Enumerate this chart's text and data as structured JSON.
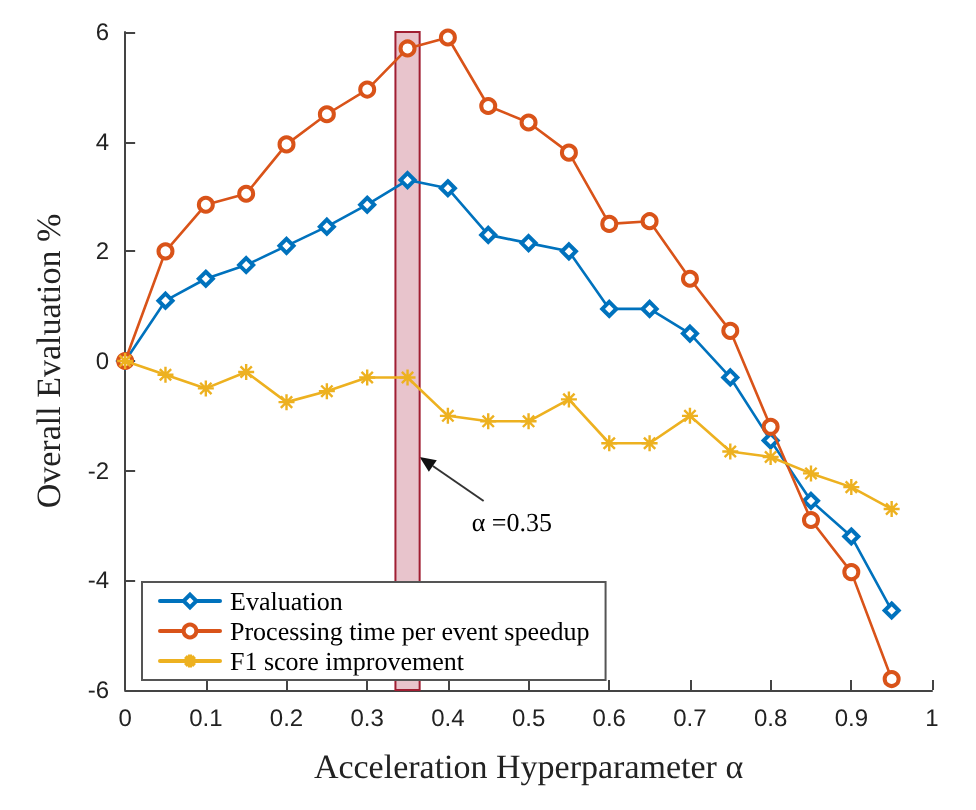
{
  "chart_data": {
    "type": "line",
    "xlabel": "Acceleration Hyperparameter α",
    "ylabel": "Overall Evaluation %",
    "x": [
      0,
      0.05,
      0.1,
      0.15,
      0.2,
      0.25,
      0.3,
      0.35,
      0.4,
      0.45,
      0.5,
      0.55,
      0.6,
      0.65,
      0.7,
      0.75,
      0.8,
      0.85,
      0.9,
      0.95
    ],
    "series": [
      {
        "name": "Evaluation",
        "color": "#0072bd",
        "marker": "diamond",
        "values": [
          0,
          1.1,
          1.5,
          1.75,
          2.1,
          2.45,
          2.85,
          3.3,
          3.15,
          2.3,
          2.15,
          2.0,
          0.95,
          0.95,
          0.5,
          -0.3,
          -1.45,
          -2.55,
          -3.2,
          -4.55
        ]
      },
      {
        "name": "Processing time per event speedup",
        "color": "#d95319",
        "marker": "circle",
        "values": [
          0,
          2.0,
          2.85,
          3.05,
          3.95,
          4.5,
          4.95,
          5.7,
          5.9,
          4.65,
          4.35,
          3.8,
          2.5,
          2.55,
          1.5,
          0.55,
          -1.2,
          -2.9,
          -3.85,
          -5.8
        ]
      },
      {
        "name": "F1 score improvement",
        "color": "#edb120",
        "marker": "cross",
        "values": [
          0,
          -0.25,
          -0.5,
          -0.2,
          -0.75,
          -0.55,
          -0.3,
          -0.3,
          -1.0,
          -1.1,
          -1.1,
          -0.7,
          -1.5,
          -1.5,
          -1.0,
          -1.65,
          -1.75,
          -2.05,
          -2.3,
          -2.7
        ]
      }
    ],
    "xlim": [
      0,
      1
    ],
    "xticks": [
      0,
      0.1,
      0.2,
      0.3,
      0.4,
      0.5,
      0.6,
      0.7,
      0.8,
      0.9,
      1
    ],
    "ylim": [
      -6,
      6
    ],
    "yticks": [
      -6,
      -4,
      -2,
      0,
      2,
      4,
      6
    ],
    "bands": [
      {
        "axis": "x",
        "from": 0.335,
        "to": 0.365,
        "color": "#e8c4cc"
      }
    ],
    "annotations": [
      {
        "text": "α =0.35",
        "x": 0.365,
        "y": -1.75
      }
    ],
    "legend": "bottom left",
    "grid": false
  }
}
